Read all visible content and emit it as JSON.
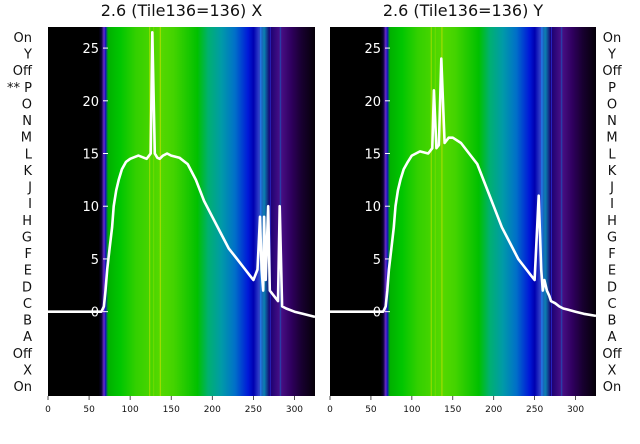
{
  "chart_data": [
    {
      "type": "heatmap",
      "title": "2.6 (Tile136=136) X",
      "x_ticks": [
        0,
        50,
        100,
        150,
        200,
        250,
        300
      ],
      "xlim": [
        0,
        325
      ],
      "y_ticks": [
        0,
        5,
        10,
        15,
        20,
        25
      ],
      "ylim": [
        -8,
        27
      ],
      "row_labels": [
        "On",
        "Y",
        "Off",
        "** P",
        "O",
        "N",
        "M",
        "L",
        "K",
        "J",
        "I",
        "H",
        "G",
        "F",
        "E",
        "D",
        "C",
        "B",
        "A",
        "Off",
        "X",
        "On"
      ],
      "line_series": {
        "x": [
          0,
          60,
          65,
          68,
          70,
          72,
          75,
          78,
          80,
          83,
          86,
          90,
          95,
          100,
          110,
          120,
          125,
          127,
          130,
          133,
          136,
          140,
          145,
          150,
          160,
          170,
          180,
          190,
          200,
          210,
          220,
          230,
          240,
          245,
          250,
          255,
          258,
          260,
          262,
          263,
          265,
          268,
          270,
          275,
          280,
          282,
          285,
          290,
          300,
          310,
          325
        ],
        "y": [
          0,
          0,
          0,
          0.5,
          2,
          4,
          6,
          8,
          10,
          11.5,
          12.5,
          13.5,
          14.2,
          14.5,
          14.8,
          14.5,
          15,
          26.5,
          15,
          14.6,
          14.5,
          14.8,
          15,
          14.8,
          14.6,
          14,
          12.5,
          10.5,
          9,
          7.5,
          6,
          5,
          4,
          3.5,
          3,
          4,
          9,
          4,
          2,
          9,
          3,
          10,
          2,
          1.5,
          1,
          10,
          0.5,
          0.3,
          0,
          -0.2,
          -0.5
        ]
      }
    },
    {
      "type": "heatmap",
      "title": "2.6 (Tile136=136) Y",
      "x_ticks": [
        0,
        50,
        100,
        150,
        200,
        250,
        300
      ],
      "xlim": [
        0,
        325
      ],
      "y_ticks": [
        0,
        5,
        10,
        15,
        20,
        25
      ],
      "ylim": [
        -8,
        27
      ],
      "row_labels": [
        "On",
        "Y",
        "Off",
        "P",
        "O",
        "N",
        "M",
        "L",
        "K",
        "J",
        "I",
        "H",
        "G",
        "F",
        "E",
        "D",
        "C",
        "B",
        "A",
        "Off",
        "X",
        "On"
      ],
      "line_series": {
        "x": [
          0,
          60,
          65,
          68,
          70,
          72,
          75,
          78,
          80,
          83,
          86,
          90,
          95,
          100,
          110,
          120,
          125,
          127,
          130,
          133,
          136,
          140,
          145,
          150,
          160,
          170,
          180,
          190,
          200,
          210,
          220,
          230,
          240,
          245,
          250,
          255,
          258,
          260,
          262,
          265,
          268,
          270,
          275,
          280,
          285,
          290,
          300,
          310,
          325
        ],
        "y": [
          0,
          0,
          0,
          0.5,
          2,
          4,
          6,
          8,
          10,
          11.5,
          12.5,
          13.5,
          14.2,
          14.8,
          15.2,
          15,
          15.5,
          21,
          15.5,
          15.8,
          24,
          16,
          16.5,
          16.5,
          16,
          15,
          14,
          12,
          10,
          8,
          6.5,
          5,
          4,
          3.5,
          3,
          11,
          4,
          2,
          3,
          2,
          1.5,
          1,
          0.8,
          0.5,
          0.3,
          0.2,
          0,
          -0.2,
          -0.4
        ]
      }
    }
  ]
}
